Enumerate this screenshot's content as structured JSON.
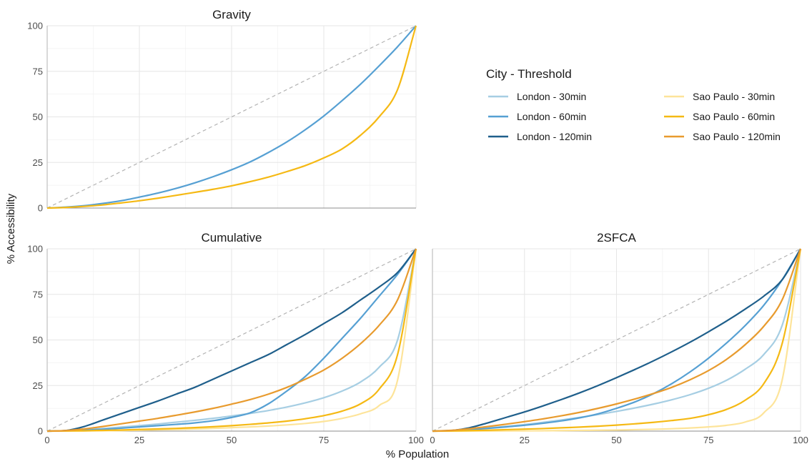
{
  "chart_data": {
    "type": "line",
    "xlabel": "% Population",
    "ylabel": "% Accessibility",
    "xlim": [
      0,
      100
    ],
    "ylim": [
      0,
      100
    ],
    "x_ticks": [
      0,
      25,
      50,
      75,
      100
    ],
    "y_ticks": [
      0,
      25,
      50,
      75,
      100
    ],
    "grid": true,
    "reference_line": "dashed diagonal (equality line)",
    "legend": {
      "title": "City - Threshold",
      "placement": "top-right",
      "entries": [
        {
          "label": "London - 30min",
          "color": "#a6cee3"
        },
        {
          "label": "London - 60min",
          "color": "#56a0d3"
        },
        {
          "label": "London - 120min",
          "color": "#1f5f8b"
        },
        {
          "label": "Sao Paulo - 30min",
          "color": "#fde49a"
        },
        {
          "label": "Sao Paulo - 60min",
          "color": "#f5b914"
        },
        {
          "label": "Sao Paulo - 120min",
          "color": "#e89b2e"
        }
      ]
    },
    "x": [
      0,
      5,
      10,
      15,
      20,
      25,
      30,
      35,
      40,
      45,
      50,
      55,
      60,
      65,
      70,
      75,
      80,
      85,
      90,
      95,
      100
    ],
    "panels": [
      {
        "title": "Gravity",
        "series": [
          {
            "name": "London - 60min",
            "color": "#56a0d3",
            "values": [
              0,
              0.5,
              1.3,
              2.5,
              4,
              6,
              8.2,
              10.8,
              13.8,
              17.2,
              21,
              25.3,
              30.5,
              36.3,
              43,
              50.5,
              59,
              68,
              78,
              88.5,
              100
            ]
          },
          {
            "name": "Sao Paulo - 60min",
            "color": "#f5b914",
            "values": [
              0,
              0.3,
              0.9,
              1.7,
              2.8,
              4,
              5.4,
              7,
              8.6,
              10.3,
              12.2,
              14.5,
              17,
              20,
              23.3,
              27.5,
              32.5,
              40,
              50,
              65,
              100
            ]
          }
        ]
      },
      {
        "title": "Cumulative",
        "series": [
          {
            "name": "London - 30min",
            "color": "#a6cee3",
            "values": [
              0,
              0.2,
              0.7,
              1.4,
              2.2,
              3,
              3.9,
              4.9,
              5.9,
              7,
              8.3,
              9.7,
              11.3,
              13.2,
              15.5,
              18.3,
              22,
              27,
              35,
              50,
              100
            ]
          },
          {
            "name": "London - 60min",
            "color": "#56a0d3",
            "values": [
              0,
              0.2,
              0.5,
              1,
              1.6,
              2.3,
              3,
              3.7,
              4.5,
              5.7,
              7.5,
              10,
              15,
              22,
              30,
              40,
              51,
              62,
              74,
              86,
              100
            ]
          },
          {
            "name": "London - 120min",
            "color": "#1f5f8b",
            "values": [
              0,
              0.3,
              2.5,
              6,
              9.5,
              13,
              16.5,
              20.3,
              24,
              28.5,
              33,
              37.5,
              42,
              47.5,
              53,
              59,
              65,
              72,
              79,
              87,
              100
            ]
          },
          {
            "name": "Sao Paulo - 30min",
            "color": "#fde49a",
            "values": [
              0,
              0.05,
              0.1,
              0.2,
              0.3,
              0.5,
              0.7,
              0.9,
              1.2,
              1.5,
              1.9,
              2.3,
              2.8,
              3.4,
              4.2,
              5.3,
              7,
              9.5,
              14,
              28,
              100
            ]
          },
          {
            "name": "Sao Paulo - 60min",
            "color": "#f5b914",
            "values": [
              0,
              0.1,
              0.2,
              0.4,
              0.6,
              0.9,
              1.2,
              1.5,
              1.9,
              2.4,
              3,
              3.7,
              4.5,
              5.5,
              6.8,
              8.5,
              11,
              15,
              23,
              42,
              100
            ]
          },
          {
            "name": "Sao Paulo - 120min",
            "color": "#e89b2e",
            "values": [
              0,
              0.3,
              1.2,
              2.5,
              4,
              5.5,
              7,
              8.7,
              10.5,
              12.5,
              14.8,
              17.3,
              20.3,
              24,
              28.5,
              33.5,
              40,
              48,
              58,
              72,
              100
            ]
          }
        ]
      },
      {
        "title": "2SFCA",
        "series": [
          {
            "name": "London - 30min",
            "color": "#a6cee3",
            "values": [
              0,
              0.3,
              0.9,
              1.7,
              2.6,
              3.6,
              4.8,
              6.1,
              7.5,
              9.1,
              10.8,
              12.7,
              14.8,
              17.2,
              20,
              23.5,
              28,
              34,
              42,
              58,
              100
            ]
          },
          {
            "name": "London - 60min",
            "color": "#56a0d3",
            "values": [
              0,
              0.3,
              0.8,
              1.5,
              2.3,
              3.2,
              4.3,
              5.6,
              7.3,
              9.5,
              12.5,
              16,
              20.5,
              26,
              32.5,
              40,
              48.5,
              58,
              69,
              83,
              100
            ]
          },
          {
            "name": "London - 120min",
            "color": "#1f5f8b",
            "values": [
              0,
              0.3,
              1.8,
              4.5,
              7.5,
              10.5,
              13.8,
              17.3,
              21,
              25,
              29.3,
              33.8,
              38.5,
              43.5,
              48.8,
              54.5,
              60.5,
              67,
              74,
              83,
              100
            ]
          },
          {
            "name": "Sao Paulo - 30min",
            "color": "#fde49a",
            "values": [
              0,
              0,
              0,
              0.05,
              0.1,
              0.15,
              0.2,
              0.3,
              0.4,
              0.5,
              0.6,
              0.8,
              1,
              1.3,
              1.7,
              2.3,
              3.2,
              5,
              10,
              28,
              100
            ]
          },
          {
            "name": "Sao Paulo - 60min",
            "color": "#f5b914",
            "values": [
              0,
              0.1,
              0.3,
              0.5,
              0.8,
              1.1,
              1.4,
              1.8,
              2.2,
              2.7,
              3.3,
              4,
              4.8,
              5.8,
              7,
              9,
              12,
              17,
              26,
              48,
              100
            ]
          },
          {
            "name": "Sao Paulo - 120min",
            "color": "#e89b2e",
            "values": [
              0,
              0.4,
              1.3,
              2.5,
              3.8,
              5.2,
              6.7,
              8.4,
              10.3,
              12.5,
              14.9,
              17.6,
              20.6,
              24,
              28.2,
              33.2,
              39.5,
              47.5,
              57.5,
              72,
              100
            ]
          }
        ]
      }
    ]
  }
}
